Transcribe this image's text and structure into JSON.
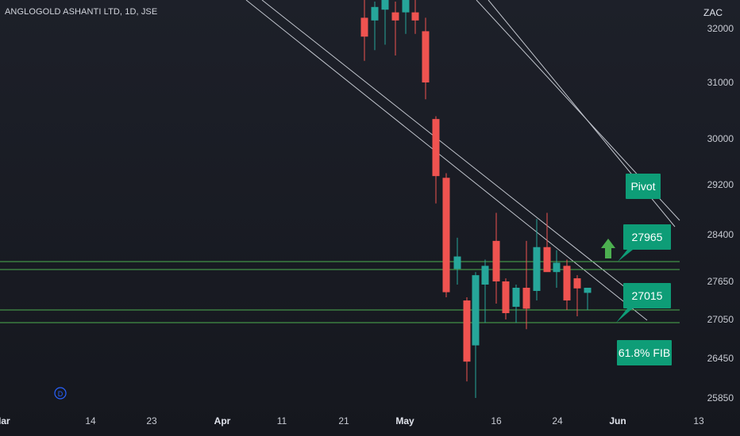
{
  "header": {
    "symbol_title": "ANGLOGOLD ASHANTI LTD, 1D, JSE",
    "currency": "ZAC"
  },
  "colors": {
    "up": "#26a69a",
    "down": "#ef5350",
    "support_line": "#4caf50",
    "channel_line": "#c0c4cc",
    "label_bg": "#0e9d77",
    "arrow": "#4caf50",
    "dividend_marker": "#2962ff"
  },
  "chart_data": {
    "type": "candlestick",
    "symbol": "ANGLOGOLD ASHANTI LTD",
    "interval": "1D",
    "exchange": "JSE",
    "currency": "ZAC",
    "y_ticks": [
      32000,
      31000,
      30000,
      29200,
      28400,
      27650,
      27050,
      26450,
      25850
    ],
    "x_ticks": [
      {
        "label": "Mar",
        "bold": true
      },
      {
        "label": "14",
        "bold": false
      },
      {
        "label": "23",
        "bold": false
      },
      {
        "label": "Apr",
        "bold": true
      },
      {
        "label": "11",
        "bold": false
      },
      {
        "label": "21",
        "bold": false
      },
      {
        "label": "May",
        "bold": true
      },
      {
        "label": "16",
        "bold": false
      },
      {
        "label": "24",
        "bold": false
      },
      {
        "label": "Jun",
        "bold": true
      },
      {
        "label": "13",
        "bold": false
      }
    ],
    "candles": [
      {
        "open": 32200,
        "high": 32700,
        "low": 31400,
        "close": 31850
      },
      {
        "open": 32150,
        "high": 32500,
        "low": 31600,
        "close": 32400
      },
      {
        "open": 32350,
        "high": 32900,
        "low": 31700,
        "close": 32700
      },
      {
        "open": 32300,
        "high": 32500,
        "low": 31500,
        "close": 32150
      },
      {
        "open": 32300,
        "high": 32700,
        "low": 31900,
        "close": 32600
      },
      {
        "open": 32300,
        "high": 32600,
        "low": 31900,
        "close": 32150
      },
      {
        "open": 31950,
        "high": 32200,
        "low": 30700,
        "close": 31000
      },
      {
        "open": 30350,
        "high": 30400,
        "low": 28900,
        "close": 29350
      },
      {
        "open": 29320,
        "high": 29400,
        "low": 27400,
        "close": 27480
      },
      {
        "open": 27850,
        "high": 28350,
        "low": 27600,
        "close": 28050
      },
      {
        "open": 27350,
        "high": 27400,
        "low": 26100,
        "close": 26400
      },
      {
        "open": 26650,
        "high": 27800,
        "low": 25850,
        "close": 27750
      },
      {
        "open": 27600,
        "high": 28000,
        "low": 27000,
        "close": 27900
      },
      {
        "open": 28300,
        "high": 28750,
        "low": 27300,
        "close": 27650
      },
      {
        "open": 27650,
        "high": 27700,
        "low": 27050,
        "close": 27150
      },
      {
        "open": 27250,
        "high": 27600,
        "low": 27000,
        "close": 27550
      },
      {
        "open": 27550,
        "high": 28300,
        "low": 26900,
        "close": 27220
      },
      {
        "open": 27500,
        "high": 28650,
        "low": 27350,
        "close": 28200
      },
      {
        "open": 28200,
        "high": 28750,
        "low": 27850,
        "close": 27800
      },
      {
        "open": 27800,
        "high": 28150,
        "low": 27550,
        "close": 27950
      },
      {
        "open": 27900,
        "high": 28000,
        "low": 27200,
        "close": 27350
      },
      {
        "open": 27700,
        "high": 27750,
        "low": 27100,
        "close": 27540
      },
      {
        "open": 27470,
        "high": 27550,
        "low": 27200,
        "close": 27550
      }
    ],
    "horizontal_levels": [
      27965,
      27820,
      27300,
      27015
    ],
    "annotations": [
      {
        "type": "label",
        "text": "Pivot",
        "kind": "pivot"
      },
      {
        "type": "label",
        "text": "27965",
        "kind": "resistance"
      },
      {
        "type": "label",
        "text": "27015",
        "kind": "support"
      },
      {
        "type": "label",
        "text": "61.8% FIB",
        "kind": "fib"
      },
      {
        "type": "arrow",
        "direction": "up"
      },
      {
        "type": "marker",
        "text": "D",
        "kind": "dividend"
      }
    ]
  }
}
